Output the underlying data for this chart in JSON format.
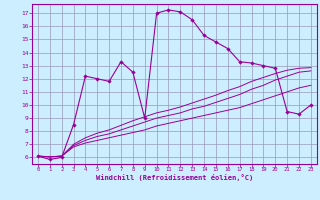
{
  "background_color": "#cceeff",
  "line_color": "#990099",
  "grid_color": "#9999bb",
  "xlabel": "Windchill (Refroidissement éolien,°C)",
  "xlim": [
    -0.5,
    23.5
  ],
  "ylim": [
    5.5,
    17.7
  ],
  "yticks": [
    6,
    7,
    8,
    9,
    10,
    11,
    12,
    13,
    14,
    15,
    16,
    17
  ],
  "xticks": [
    0,
    1,
    2,
    3,
    4,
    5,
    6,
    7,
    8,
    9,
    10,
    11,
    12,
    13,
    14,
    15,
    16,
    17,
    18,
    19,
    20,
    21,
    22,
    23
  ],
  "series_main": {
    "x": [
      0,
      1,
      2,
      3,
      4,
      5,
      6,
      7,
      8,
      9,
      10,
      11,
      12,
      13,
      14,
      15,
      16,
      17,
      18,
      19,
      20,
      21,
      22,
      23
    ],
    "y": [
      6.1,
      5.85,
      6.0,
      8.5,
      12.2,
      12.0,
      11.8,
      13.3,
      12.5,
      9.0,
      17.0,
      17.25,
      17.1,
      16.5,
      15.3,
      14.8,
      14.3,
      13.3,
      13.2,
      13.0,
      12.8,
      9.5,
      9.3,
      10.0
    ]
  },
  "series_flat": [
    {
      "x": [
        0,
        1,
        2,
        3,
        4,
        5,
        6,
        7,
        8,
        9,
        10,
        11,
        12,
        13,
        14,
        15,
        16,
        17,
        18,
        19,
        20,
        21,
        22,
        23
      ],
      "y": [
        6.1,
        6.05,
        6.1,
        6.8,
        7.1,
        7.3,
        7.5,
        7.7,
        7.9,
        8.1,
        8.4,
        8.6,
        8.8,
        9.0,
        9.2,
        9.4,
        9.6,
        9.8,
        10.1,
        10.4,
        10.7,
        11.0,
        11.3,
        11.5
      ]
    },
    {
      "x": [
        0,
        1,
        2,
        3,
        4,
        5,
        6,
        7,
        8,
        9,
        10,
        11,
        12,
        13,
        14,
        15,
        16,
        17,
        18,
        19,
        20,
        21,
        22,
        23
      ],
      "y": [
        6.1,
        6.05,
        6.1,
        6.9,
        7.3,
        7.6,
        7.8,
        8.1,
        8.4,
        8.7,
        9.0,
        9.2,
        9.4,
        9.7,
        9.9,
        10.2,
        10.5,
        10.8,
        11.2,
        11.5,
        11.9,
        12.2,
        12.5,
        12.6
      ]
    },
    {
      "x": [
        0,
        1,
        2,
        3,
        4,
        5,
        6,
        7,
        8,
        9,
        10,
        11,
        12,
        13,
        14,
        15,
        16,
        17,
        18,
        19,
        20,
        21,
        22,
        23
      ],
      "y": [
        6.1,
        6.05,
        6.1,
        7.0,
        7.5,
        7.85,
        8.1,
        8.45,
        8.8,
        9.1,
        9.4,
        9.6,
        9.85,
        10.15,
        10.45,
        10.75,
        11.1,
        11.4,
        11.8,
        12.1,
        12.4,
        12.65,
        12.8,
        12.85
      ]
    }
  ]
}
